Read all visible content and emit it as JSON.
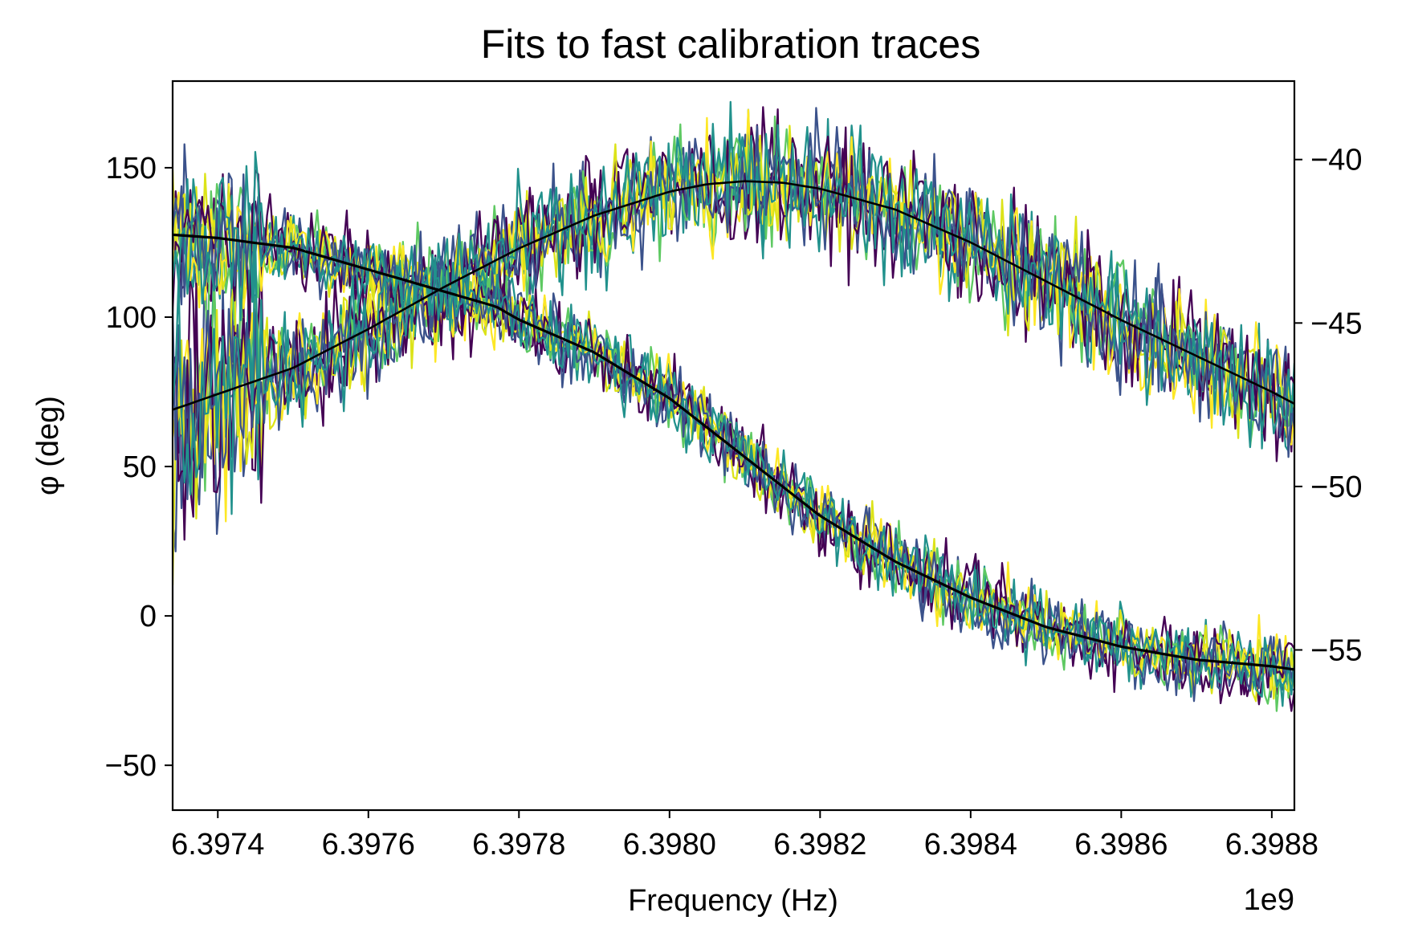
{
  "chart_data": {
    "type": "line",
    "title": "Fits to fast calibration traces",
    "xlabel": "Frequency (Hz)",
    "x_offset_label": "1e9",
    "ylabel": "φ (deg)",
    "xlim": [
      6.39734,
      6.39883
    ],
    "ylim": [
      -65,
      179
    ],
    "y2lim": [
      -59.9,
      -37.6
    ],
    "xticks": [
      6.3974,
      6.3976,
      6.3978,
      6.398,
      6.3982,
      6.3984,
      6.3986,
      6.3988
    ],
    "xtick_labels": [
      "6.3974",
      "6.3976",
      "6.3978",
      "6.3980",
      "6.3982",
      "6.3984",
      "6.3986",
      "6.3988"
    ],
    "yticks": [
      -50,
      0,
      50,
      100,
      150
    ],
    "ytick_labels": [
      "−50",
      "0",
      "50",
      "100",
      "150"
    ],
    "y2ticks": [
      -55,
      -50,
      -45,
      -40
    ],
    "y2tick_labels": [
      "−55",
      "−50",
      "−45",
      "−40"
    ],
    "grid": false,
    "colormap": [
      "#440154",
      "#3b528b",
      "#21918c",
      "#5ec962",
      "#fde725",
      "#dce319"
    ],
    "noisy_traces": {
      "count": 9,
      "description_bands": "two noisy bands of calibration traces colored by viridis colormap"
    },
    "series": [
      {
        "axis": "left",
        "color": "#000000",
        "x": [
          6.39734,
          6.3975,
          6.3976,
          6.3977,
          6.3978,
          6.3979,
          6.398,
          6.39805,
          6.3981,
          6.39815,
          6.3982,
          6.3983,
          6.3984,
          6.3985,
          6.3986,
          6.3987,
          6.3988,
          6.39883
        ],
        "y": [
          69,
          83,
          96,
          110,
          123,
          134,
          142,
          144.5,
          145.5,
          145,
          143,
          136,
          125,
          112,
          99,
          87,
          75,
          71
        ]
      },
      {
        "axis": "right",
        "color": "#000000",
        "x": [
          6.39734,
          6.3974,
          6.3975,
          6.39777,
          6.3978,
          6.3979,
          6.398,
          6.3981,
          6.3982,
          6.3983,
          6.3984,
          6.3985,
          6.3986,
          6.3987,
          6.3988,
          6.39883
        ],
        "y": [
          -42.3,
          -42.4,
          -42.7,
          -44.5,
          -44.9,
          -45.9,
          -47.3,
          -49.1,
          -50.9,
          -52.3,
          -53.4,
          -54.3,
          -54.9,
          -55.3,
          -55.5,
          -55.6
        ]
      }
    ]
  }
}
